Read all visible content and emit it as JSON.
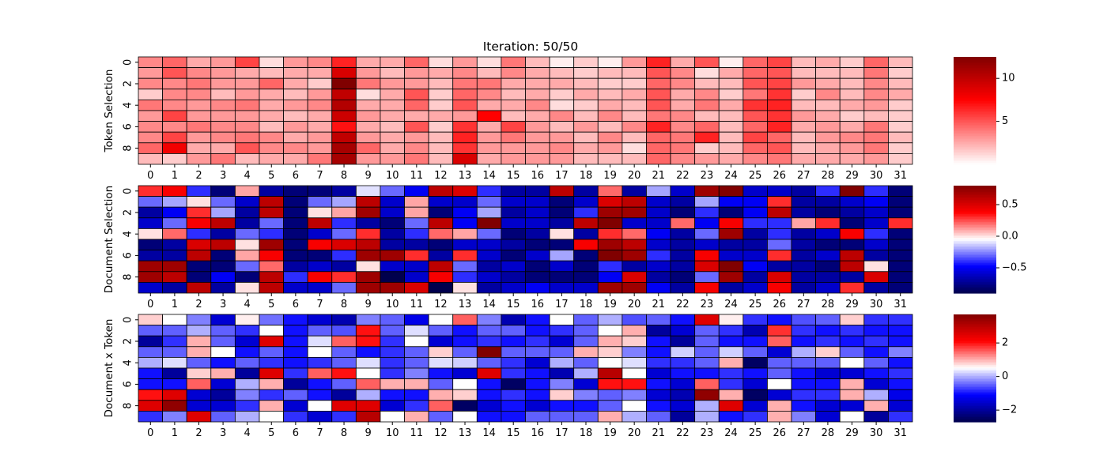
{
  "figure_title": "Iteration: 50/50",
  "chart_data": [
    {
      "type": "heatmap",
      "ylabel": "Token Selection",
      "x_ticks": [
        "0",
        "1",
        "2",
        "3",
        "4",
        "5",
        "6",
        "7",
        "8",
        "9",
        "10",
        "11",
        "12",
        "13",
        "14",
        "15",
        "16",
        "17",
        "18",
        "19",
        "20",
        "21",
        "22",
        "23",
        "24",
        "25",
        "26",
        "27",
        "28",
        "29",
        "30",
        "31"
      ],
      "y_ticks": [
        "0",
        "2",
        "4",
        "6",
        "8"
      ],
      "colormap": "white-red-darkred",
      "vmin": 0,
      "vmax": 12.5,
      "colorbar_ticks": [
        "5",
        "10"
      ],
      "values": [
        [
          3.5,
          4.5,
          2.5,
          3.0,
          5.5,
          1.0,
          3.0,
          3.5,
          6.5,
          2.5,
          2.5,
          4.5,
          1.0,
          3.0,
          1.0,
          4.0,
          2.0,
          0.5,
          1.5,
          0.5,
          3.0,
          6.5,
          2.5,
          5.0,
          0.5,
          4.5,
          5.5,
          2.0,
          2.5,
          1.5,
          4.5,
          2.0
        ],
        [
          3.0,
          5.0,
          3.5,
          3.0,
          2.5,
          2.0,
          2.5,
          2.5,
          9.0,
          3.0,
          2.0,
          3.0,
          2.5,
          3.5,
          2.0,
          3.5,
          2.5,
          2.0,
          1.5,
          2.0,
          2.0,
          5.0,
          3.5,
          1.0,
          2.5,
          4.5,
          5.0,
          2.0,
          2.0,
          2.0,
          4.0,
          1.5
        ],
        [
          3.5,
          3.5,
          4.0,
          3.0,
          3.0,
          4.5,
          2.5,
          1.5,
          12.5,
          4.0,
          3.0,
          3.0,
          2.0,
          4.0,
          4.0,
          2.5,
          2.5,
          2.5,
          2.0,
          1.5,
          1.5,
          4.5,
          3.5,
          2.0,
          2.0,
          5.0,
          5.5,
          3.0,
          2.5,
          2.0,
          3.5,
          2.0
        ],
        [
          1.5,
          3.5,
          3.5,
          2.0,
          3.0,
          2.5,
          2.0,
          3.0,
          10.0,
          1.0,
          2.5,
          5.0,
          1.5,
          4.5,
          3.5,
          2.0,
          2.5,
          1.5,
          2.5,
          2.0,
          2.5,
          5.0,
          2.5,
          3.5,
          1.5,
          4.0,
          6.0,
          1.5,
          3.5,
          2.0,
          3.5,
          2.5
        ],
        [
          4.0,
          3.5,
          3.0,
          3.5,
          4.0,
          2.5,
          3.0,
          3.5,
          10.5,
          2.5,
          2.5,
          4.5,
          1.5,
          5.0,
          2.5,
          2.5,
          3.5,
          1.0,
          1.5,
          2.5,
          2.0,
          5.0,
          2.5,
          4.0,
          2.5,
          6.0,
          6.5,
          2.0,
          2.0,
          2.5,
          3.0,
          1.5
        ],
        [
          3.0,
          5.5,
          3.0,
          3.0,
          3.0,
          2.5,
          2.0,
          2.5,
          9.5,
          3.0,
          2.5,
          2.5,
          2.5,
          3.0,
          7.5,
          2.0,
          2.5,
          3.5,
          2.0,
          3.5,
          2.0,
          4.0,
          3.5,
          2.0,
          2.0,
          5.0,
          6.0,
          3.0,
          2.5,
          1.5,
          2.0,
          1.5
        ],
        [
          3.5,
          3.5,
          4.0,
          3.5,
          3.5,
          2.0,
          3.0,
          2.5,
          7.0,
          2.5,
          2.0,
          5.0,
          1.5,
          6.0,
          2.5,
          5.5,
          3.0,
          2.0,
          3.0,
          2.0,
          3.5,
          6.5,
          3.5,
          4.5,
          2.0,
          4.5,
          6.5,
          2.5,
          3.0,
          2.5,
          4.0,
          1.5
        ],
        [
          3.5,
          5.5,
          3.0,
          3.5,
          4.0,
          3.5,
          2.5,
          3.0,
          10.0,
          3.0,
          2.5,
          3.0,
          2.0,
          6.5,
          3.0,
          4.0,
          3.0,
          3.0,
          2.0,
          3.5,
          2.0,
          4.5,
          4.0,
          6.5,
          2.0,
          5.5,
          4.5,
          2.0,
          3.0,
          3.5,
          4.0,
          2.0
        ],
        [
          4.5,
          8.0,
          2.5,
          2.5,
          5.0,
          3.5,
          3.5,
          3.0,
          11.0,
          4.5,
          2.5,
          3.5,
          2.0,
          6.0,
          3.0,
          3.0,
          3.0,
          3.5,
          2.5,
          3.0,
          1.0,
          4.5,
          4.0,
          1.5,
          2.0,
          4.5,
          5.0,
          2.0,
          2.5,
          3.0,
          4.0,
          1.5
        ],
        [
          2.0,
          1.5,
          3.0,
          4.0,
          2.0,
          2.5,
          2.5,
          4.0,
          11.0,
          3.0,
          3.0,
          4.0,
          2.0,
          9.0,
          2.5,
          3.0,
          3.0,
          3.0,
          2.0,
          2.0,
          2.0,
          4.5,
          3.5,
          3.0,
          2.5,
          3.5,
          4.0,
          2.5,
          2.5,
          2.5,
          3.0,
          1.5
        ]
      ]
    },
    {
      "type": "heatmap",
      "ylabel": "Document Selection",
      "x_ticks": [
        "0",
        "1",
        "2",
        "3",
        "4",
        "5",
        "6",
        "7",
        "8",
        "9",
        "10",
        "11",
        "12",
        "13",
        "14",
        "15",
        "16",
        "17",
        "18",
        "19",
        "20",
        "21",
        "22",
        "23",
        "24",
        "25",
        "26",
        "27",
        "28",
        "29",
        "30",
        "31"
      ],
      "y_ticks": [
        "0",
        "2",
        "4",
        "6",
        "8"
      ],
      "colormap": "seismic",
      "vmin": -0.9,
      "vmax": 0.8,
      "colorbar_ticks": [
        "0.5",
        "0.0",
        "−0.5"
      ],
      "values": [
        [
          0.3,
          0.4,
          -0.4,
          -0.8,
          0.1,
          -0.7,
          -0.8,
          -0.8,
          -0.7,
          -0.1,
          -0.3,
          -0.5,
          0.6,
          0.5,
          -0.4,
          -0.7,
          -0.7,
          0.6,
          -0.7,
          0.2,
          -0.7,
          -0.2,
          -0.6,
          0.7,
          0.8,
          -0.6,
          -0.6,
          -0.7,
          -0.4,
          0.8,
          -0.4,
          -0.8
        ],
        [
          -0.3,
          -0.2,
          0.0,
          -0.3,
          -0.6,
          0.6,
          -0.8,
          -0.3,
          -0.2,
          0.6,
          -0.6,
          0.1,
          -0.6,
          -0.6,
          -0.3,
          -0.6,
          -0.6,
          -0.8,
          -0.6,
          0.5,
          0.6,
          -0.6,
          -0.7,
          -0.2,
          -0.5,
          -0.5,
          0.3,
          -0.7,
          -0.7,
          -0.6,
          -0.5,
          -0.8
        ],
        [
          -0.7,
          -0.5,
          0.3,
          -0.2,
          -0.7,
          0.6,
          -0.8,
          0.0,
          0.1,
          0.7,
          -0.6,
          0.1,
          -0.8,
          -0.5,
          -0.2,
          -0.7,
          -0.6,
          -0.8,
          -0.4,
          0.7,
          0.7,
          -0.6,
          -0.8,
          -0.4,
          -0.8,
          -0.5,
          0.6,
          -0.7,
          -0.8,
          -0.7,
          -0.6,
          -0.8
        ],
        [
          -0.6,
          -0.3,
          0.4,
          0.6,
          -0.7,
          -0.3,
          -0.8,
          0.6,
          -0.4,
          -0.7,
          -0.8,
          -0.3,
          0.6,
          -0.5,
          0.8,
          -0.6,
          -0.6,
          -0.7,
          0.6,
          0.8,
          -0.6,
          -0.6,
          0.2,
          -0.5,
          0.4,
          -0.4,
          -0.4,
          0.1,
          0.3,
          -0.8,
          -0.6,
          0.3
        ],
        [
          0.0,
          0.2,
          -0.4,
          -0.7,
          -0.3,
          -0.4,
          -0.8,
          -0.6,
          -0.3,
          0.3,
          -0.7,
          -0.4,
          0.2,
          0.1,
          -0.3,
          -0.8,
          -0.7,
          0.0,
          -0.7,
          0.3,
          0.2,
          -0.5,
          -0.7,
          -0.3,
          0.7,
          -0.7,
          -0.4,
          -0.7,
          -0.6,
          0.4,
          -0.4,
          -0.8
        ],
        [
          -0.8,
          -0.7,
          0.5,
          0.6,
          0.0,
          0.7,
          -0.8,
          0.4,
          0.5,
          0.6,
          -0.7,
          -0.7,
          -0.8,
          -0.6,
          -0.6,
          -0.7,
          -0.8,
          -0.8,
          0.4,
          0.7,
          0.6,
          -0.6,
          -0.7,
          -0.6,
          -0.7,
          -0.7,
          -0.3,
          -0.7,
          -0.8,
          -0.8,
          -0.6,
          -0.8
        ],
        [
          -0.7,
          -0.7,
          0.6,
          -0.8,
          0.1,
          0.4,
          -0.8,
          -0.8,
          -0.4,
          0.7,
          0.7,
          0.3,
          -0.7,
          0.3,
          -0.6,
          -0.8,
          -0.6,
          -0.2,
          -0.8,
          0.8,
          0.7,
          -0.4,
          -0.7,
          0.4,
          -0.6,
          -0.6,
          0.3,
          -0.7,
          -0.6,
          0.6,
          -0.7,
          -0.8
        ],
        [
          0.7,
          0.7,
          -0.8,
          -0.8,
          -0.3,
          0.2,
          -0.7,
          -0.6,
          -0.7,
          0.0,
          -0.6,
          -0.6,
          0.6,
          -0.3,
          -0.7,
          -0.6,
          -0.8,
          -0.6,
          -0.8,
          -0.4,
          -0.7,
          -0.6,
          -0.7,
          0.5,
          0.8,
          -0.5,
          -0.7,
          -0.7,
          -0.8,
          0.6,
          0.0,
          -0.8
        ],
        [
          0.7,
          0.6,
          -0.8,
          -0.5,
          -0.8,
          0.6,
          -0.4,
          0.4,
          0.3,
          0.7,
          -0.9,
          -0.6,
          0.4,
          -0.4,
          -0.6,
          -0.7,
          -0.8,
          -0.8,
          -0.8,
          -0.5,
          0.5,
          -0.7,
          -0.8,
          -0.3,
          0.7,
          -0.7,
          0.5,
          -0.7,
          -0.7,
          -0.7,
          0.5,
          -0.8
        ],
        [
          -0.6,
          -0.7,
          0.6,
          -0.7,
          0.0,
          0.6,
          -0.6,
          -0.6,
          -0.3,
          0.7,
          0.7,
          0.5,
          -0.9,
          0.0,
          -0.7,
          -0.6,
          -0.5,
          -0.6,
          -0.6,
          0.7,
          0.7,
          -0.5,
          -0.7,
          0.4,
          -0.7,
          -0.6,
          0.4,
          -0.7,
          -0.6,
          0.3,
          -0.7,
          -0.8
        ]
      ]
    },
    {
      "type": "heatmap",
      "ylabel": "Document x Token",
      "x_ticks": [
        "0",
        "1",
        "2",
        "3",
        "4",
        "5",
        "6",
        "7",
        "8",
        "9",
        "10",
        "11",
        "12",
        "13",
        "14",
        "15",
        "16",
        "17",
        "18",
        "19",
        "20",
        "21",
        "22",
        "23",
        "24",
        "25",
        "26",
        "27",
        "28",
        "29",
        "30",
        "31"
      ],
      "y_ticks": [
        "0",
        "2",
        "4",
        "6",
        "8"
      ],
      "colormap": "seismic",
      "vmin": -2.7,
      "vmax": 3.7,
      "colorbar_ticks": [
        "2",
        "0",
        "−2"
      ],
      "values": [
        [
          0.8,
          0.5,
          -0.3,
          -1.5,
          0.6,
          -0.4,
          -1.0,
          -1.5,
          -1.8,
          -0.3,
          -0.5,
          -1.3,
          0.5,
          1.5,
          -0.3,
          -1.8,
          -1.0,
          0.5,
          -0.5,
          0.0,
          -0.6,
          -0.5,
          -1.0,
          2.5,
          0.6,
          -0.8,
          -1.0,
          -0.6,
          -0.5,
          0.8,
          -0.8,
          -0.8
        ],
        [
          -0.5,
          -0.5,
          0.0,
          -0.5,
          -0.8,
          0.5,
          -1.0,
          -0.5,
          -0.6,
          2.0,
          -0.5,
          0.3,
          -0.5,
          -1.0,
          -0.5,
          -0.5,
          -1.0,
          -0.8,
          -0.5,
          0.5,
          1.0,
          -2.0,
          -1.5,
          -0.5,
          -0.8,
          -1.8,
          1.8,
          -0.8,
          -1.0,
          -0.8,
          -1.0,
          -1.0
        ],
        [
          -2.0,
          -0.8,
          1.0,
          -0.5,
          -1.5,
          2.5,
          -1.0,
          0.3,
          1.5,
          2.0,
          -0.8,
          0.5,
          -1.5,
          -1.0,
          -0.8,
          -1.0,
          -0.8,
          -1.5,
          -0.5,
          1.0,
          0.8,
          -1.0,
          -2.0,
          -0.5,
          -1.0,
          -1.0,
          1.5,
          -1.0,
          -0.8,
          -1.0,
          -0.8,
          -1.0
        ],
        [
          -0.5,
          -0.5,
          1.0,
          0.5,
          -1.0,
          -0.5,
          -1.0,
          0.5,
          -0.5,
          -1.0,
          -0.8,
          -0.5,
          0.8,
          -0.5,
          3.7,
          -0.5,
          -0.5,
          -0.5,
          1.0,
          0.8,
          -0.3,
          -1.0,
          0.2,
          -0.5,
          0.2,
          -0.5,
          -1.5,
          0.0,
          0.8,
          -0.5,
          -1.0,
          -0.3
        ],
        [
          0.0,
          0.3,
          -0.5,
          -1.0,
          -0.5,
          -0.8,
          -1.0,
          -0.8,
          -0.5,
          0.3,
          -0.8,
          -0.5,
          0.3,
          0.2,
          -0.5,
          -0.8,
          -1.5,
          0.0,
          -0.5,
          0.5,
          0.3,
          -0.8,
          -0.8,
          -0.5,
          1.0,
          -2.5,
          -0.5,
          -0.5,
          -0.5,
          0.5,
          -0.5,
          -1.0
        ],
        [
          -1.0,
          -2.0,
          0.8,
          1.0,
          -2.0,
          2.5,
          -0.8,
          1.5,
          2.0,
          0.5,
          -0.8,
          -0.3,
          -1.0,
          -1.5,
          2.5,
          -0.8,
          -1.0,
          -1.8,
          0.0,
          3.0,
          0.5,
          -1.5,
          -1.0,
          -1.0,
          -0.8,
          -1.0,
          -0.5,
          -1.0,
          -1.5,
          -1.5,
          -1.0,
          -0.8
        ],
        [
          -1.0,
          -1.0,
          1.5,
          -1.5,
          0.0,
          1.0,
          -2.0,
          -1.0,
          -0.5,
          1.5,
          1.0,
          1.0,
          -0.5,
          0.5,
          -1.0,
          -2.5,
          -1.0,
          -0.3,
          -1.5,
          2.0,
          2.0,
          -1.0,
          -1.5,
          1.5,
          -0.8,
          -1.5,
          0.5,
          -1.0,
          -1.0,
          1.0,
          -1.5,
          -1.0
        ],
        [
          2.0,
          2.5,
          -1.5,
          -2.0,
          -0.3,
          -0.8,
          -0.5,
          -1.0,
          -2.0,
          0.0,
          -1.0,
          -1.0,
          1.0,
          0.8,
          -1.0,
          -0.8,
          -1.0,
          0.8,
          -0.3,
          -0.5,
          -0.3,
          -1.5,
          -1.8,
          3.5,
          1.0,
          -2.5,
          -1.5,
          -0.8,
          -0.8,
          1.0,
          0.0,
          -1.3
        ],
        [
          2.5,
          3.5,
          -1.5,
          -1.5,
          -0.8,
          1.0,
          -1.5,
          0.5,
          2.5,
          2.5,
          -1.5,
          -0.8,
          1.5,
          -2.5,
          -1.5,
          -1.0,
          -1.5,
          -1.0,
          -1.0,
          -0.5,
          0.5,
          -1.0,
          -1.5,
          0.0,
          2.5,
          -1.5,
          1.0,
          -1.0,
          -1.5,
          -1.5,
          1.0,
          -1.5
        ],
        [
          -0.8,
          -0.3,
          2.5,
          -0.5,
          0.0,
          0.5,
          -0.8,
          -1.5,
          -0.8,
          3.0,
          0.5,
          1.0,
          -0.5,
          0.5,
          -1.0,
          -1.0,
          -0.5,
          -0.5,
          -0.5,
          1.0,
          0.0,
          -0.5,
          -2.0,
          0.0,
          -1.0,
          -0.8,
          1.0,
          -0.3,
          -1.5,
          0.5,
          -2.0,
          -0.8
        ]
      ]
    }
  ]
}
